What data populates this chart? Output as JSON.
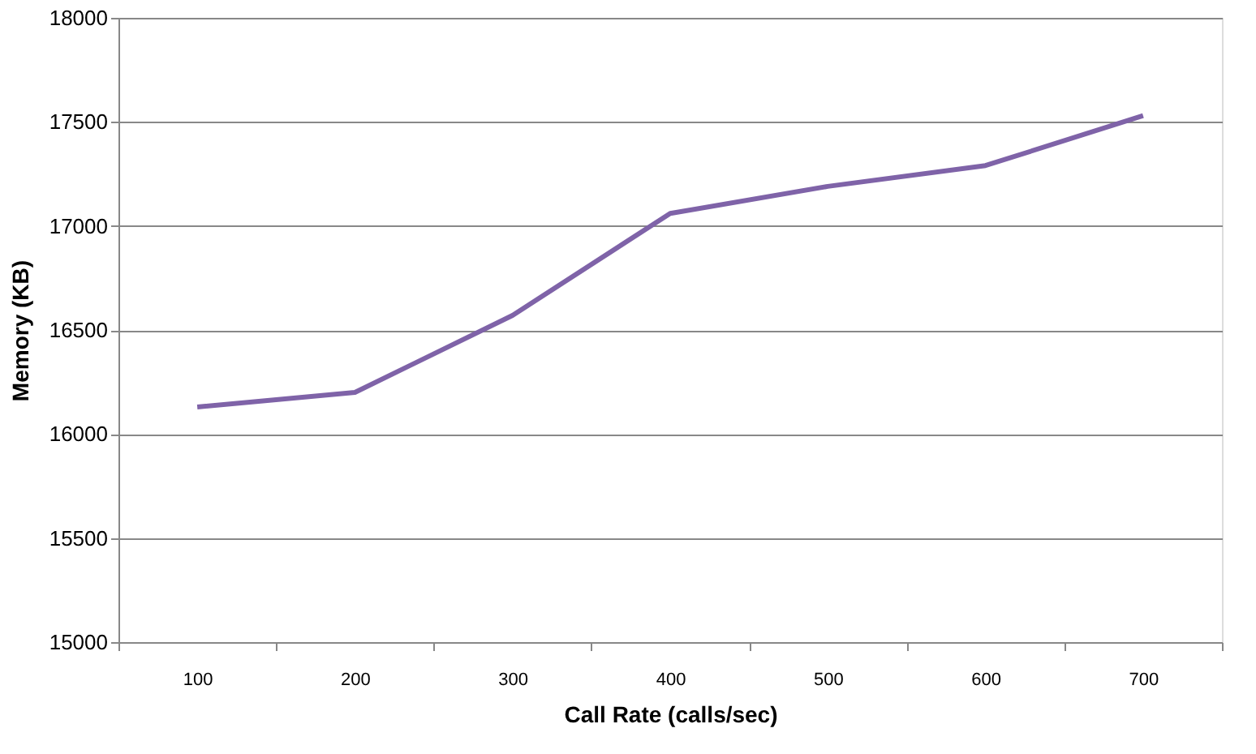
{
  "chart_data": {
    "type": "line",
    "xlabel": "Call Rate (calls/sec)",
    "ylabel": "Memory (KB)",
    "categories": [
      "100",
      "200",
      "300",
      "400",
      "500",
      "600",
      "700"
    ],
    "series": [
      {
        "color": "#7f63a8",
        "values": [
          16130,
          16200,
          16570,
          17060,
          17190,
          17290,
          17530
        ]
      }
    ],
    "ylim": [
      15000,
      18000
    ],
    "yticks": [
      15000,
      15500,
      16000,
      16500,
      17000,
      17500,
      18000
    ],
    "grid": "y",
    "marker": "none",
    "line_style": "solid"
  }
}
